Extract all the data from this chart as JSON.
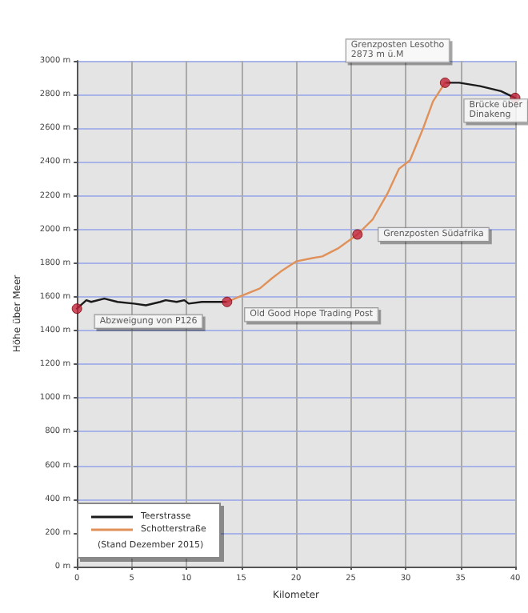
{
  "chart_data": {
    "type": "line",
    "xlabel": "Kilometer",
    "ylabel": "Höhe über Meer",
    "series": [
      {
        "name": "Teerstrasse",
        "color": "#1a1a1a",
        "x": [
          0,
          0.86,
          1.3,
          2.5,
          3.7,
          5.2,
          6.3,
          7.6,
          8.1,
          9.1,
          9.8,
          10.2,
          11.4,
          12.7,
          13.7,
          20,
          33.6,
          34.9,
          36.8,
          38.7,
          40
        ],
        "values": [
          1530,
          1580,
          1570,
          1590,
          1570,
          1560,
          1550,
          1570,
          1580,
          1570,
          1580,
          1560,
          1570,
          1570,
          1570,
          null,
          2870,
          2870,
          2850,
          2820,
          2780
        ]
      },
      {
        "name": "Schotterstraße",
        "color": "#e0915a",
        "x": [
          13.7,
          14.8,
          16.7,
          17.8,
          18.6,
          20.0,
          21.5,
          22.4,
          23.9,
          25.6,
          27.0,
          28.4,
          29.4,
          30.4,
          31.6,
          32.5,
          33.6
        ],
        "values": [
          1570,
          1600,
          1650,
          1710,
          1750,
          1810,
          1830,
          1840,
          1890,
          1970,
          2060,
          2220,
          2360,
          2410,
          2600,
          2760,
          2870
        ]
      }
    ],
    "annotations": [
      {
        "text": "Abzweigung von P126",
        "x": 0,
        "y": 1530
      },
      {
        "text": "Old Good Hope Trading Post",
        "x": 13.7,
        "y": 1570
      },
      {
        "text": "Grenzposten Südafrika",
        "x": 25.6,
        "y": 1970
      },
      {
        "text": "Grenzposten Lesotho\n2873 m ü.M",
        "x": 33.6,
        "y": 2870
      },
      {
        "text": "Brücke über\nDinakeng",
        "x": 40,
        "y": 2780
      },
      "(Stand Dezember 2015)"
    ],
    "xlim": [
      0,
      40
    ],
    "xticks": [
      0,
      5,
      10,
      15,
      20,
      25,
      30,
      35,
      40
    ],
    "ylim": [
      0,
      3000
    ],
    "yticks": [
      {
        "value": 0,
        "label": "0 m"
      },
      {
        "value": 200,
        "label": "200 m"
      },
      {
        "value": 400,
        "label": "400 m"
      },
      {
        "value": 600,
        "label": "600 m"
      },
      {
        "value": 800,
        "label": "800 m"
      },
      {
        "value": 1000,
        "label": "1000 m"
      },
      {
        "value": 1200,
        "label": "1200 m"
      },
      {
        "value": 1400,
        "label": "1400 m"
      },
      {
        "value": 1600,
        "label": "1600 m"
      },
      {
        "value": 1800,
        "label": "1800 m"
      },
      {
        "value": 2000,
        "label": "2000 m"
      },
      {
        "value": 2200,
        "label": "2200 m"
      },
      {
        "value": 2400,
        "label": "2400 m"
      },
      {
        "value": 2600,
        "label": "2600 m"
      },
      {
        "value": 2800,
        "label": "2800 m"
      },
      {
        "value": 3000,
        "label": "3000 m"
      }
    ],
    "grid": true,
    "legend": "bottom left",
    "marker": "none"
  }
}
